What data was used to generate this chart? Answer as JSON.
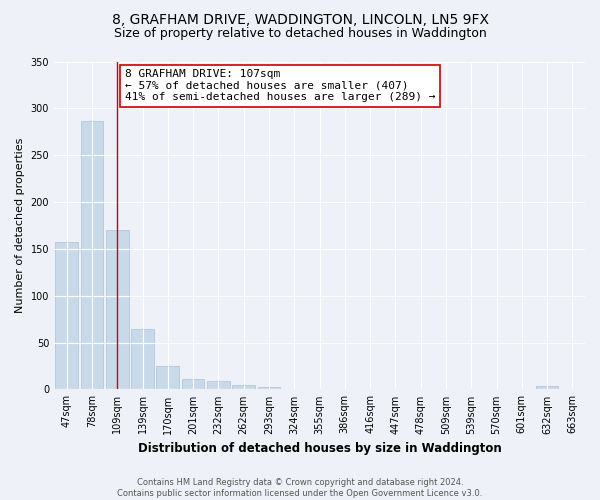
{
  "title1": "8, GRAFHAM DRIVE, WADDINGTON, LINCOLN, LN5 9FX",
  "title2": "Size of property relative to detached houses in Waddington",
  "xlabel": "Distribution of detached houses by size in Waddington",
  "ylabel": "Number of detached properties",
  "categories": [
    "47sqm",
    "78sqm",
    "109sqm",
    "139sqm",
    "170sqm",
    "201sqm",
    "232sqm",
    "262sqm",
    "293sqm",
    "324sqm",
    "355sqm",
    "386sqm",
    "416sqm",
    "447sqm",
    "478sqm",
    "509sqm",
    "539sqm",
    "570sqm",
    "601sqm",
    "632sqm",
    "663sqm"
  ],
  "values": [
    157,
    287,
    170,
    65,
    25,
    11,
    9,
    5,
    3,
    0,
    0,
    0,
    0,
    0,
    0,
    0,
    0,
    0,
    0,
    4,
    0
  ],
  "bar_color": "#c8daea",
  "bar_edgecolor": "#aac0d8",
  "highlight_index": 2,
  "highlight_line_color": "#cc0000",
  "annotation_text": "8 GRAFHAM DRIVE: 107sqm\n← 57% of detached houses are smaller (407)\n41% of semi-detached houses are larger (289) →",
  "annotation_box_edgecolor": "#cc0000",
  "annotation_box_facecolor": "#ffffff",
  "ylim": [
    0,
    350
  ],
  "yticks": [
    0,
    50,
    100,
    150,
    200,
    250,
    300,
    350
  ],
  "background_color": "#eef2f8",
  "grid_color": "#ffffff",
  "footer_text": "Contains HM Land Registry data © Crown copyright and database right 2024.\nContains public sector information licensed under the Open Government Licence v3.0.",
  "title1_fontsize": 10,
  "title2_fontsize": 9,
  "xlabel_fontsize": 8.5,
  "ylabel_fontsize": 8,
  "annotation_fontsize": 8,
  "tick_fontsize": 7,
  "footer_fontsize": 6
}
